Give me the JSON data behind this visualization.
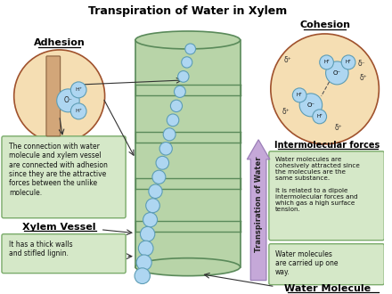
{
  "title": "Transpiration of Water in Xylem",
  "bg_color": "#ffffff",
  "xylem_color": "#b8d4a8",
  "xylem_outline": "#5a8a5a",
  "circle_fill": "#f5deb3",
  "water_molecule_color": "#aed6f1",
  "water_molecule_outline": "#5d9db5",
  "text_box_color": "#d5e8c8",
  "text_box_outline": "#7aab6a",
  "arrow_color": "#c5a8d8",
  "labels": {
    "adhesion": "Adhesion",
    "cohesion": "Cohesion",
    "xylem_vessel": "Xylem Vessel",
    "water_molecule": "Water Molecule",
    "intermolecular": "Intermolecular forces",
    "transpiration": "Transpiration of Water"
  },
  "adhesion_text": "The connection with water\nmolecule and xylem vessel\nare connected with adhesion\nsince they are the attractive\nforces between the unlike\nmolecule.",
  "xylem_vessel_text": "It has a thick walls\nand stifled lignin.",
  "cohesion_text1": "Water molecules are\ncohesively attracted since\nthe molecules are the\nsame substance.\n\nIt is related to a dipole\nintermolecular forces and\nwhich gas a high surface\ntension.",
  "cohesion_text2": "Water molecules\nare carried up one\nway."
}
